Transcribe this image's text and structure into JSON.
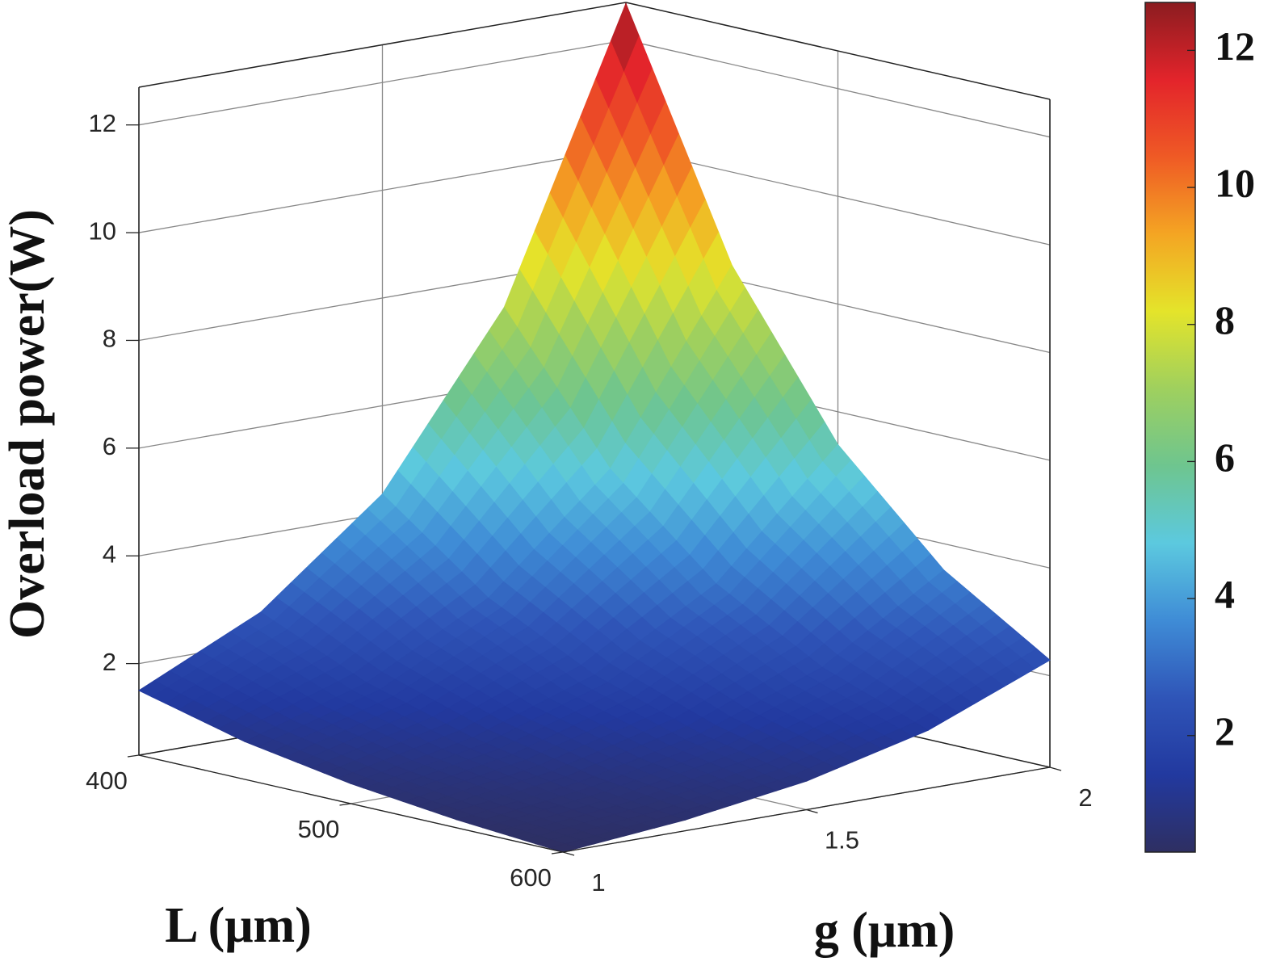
{
  "chart_data": {
    "type": "surface",
    "xlabel": "L (μm)",
    "ylabel": "g (μm)",
    "zlabel": "Overload power(W)",
    "x": [
      400,
      450,
      500,
      550,
      600
    ],
    "y": [
      1,
      1.25,
      1.5,
      1.75,
      2
    ],
    "z": [
      [
        1.5,
        2.56,
        4.36,
        7.43,
        12.68
      ],
      [
        1.0,
        1.7,
        2.88,
        4.88,
        8.27
      ],
      [
        0.67,
        1.13,
        1.9,
        3.2,
        5.39
      ],
      [
        0.45,
        0.75,
        1.26,
        2.1,
        3.51
      ],
      [
        0.3,
        0.5,
        0.83,
        1.38,
        2.29
      ]
    ],
    "xlim": [
      400,
      600
    ],
    "xticks": [
      400,
      500,
      600
    ],
    "ylim": [
      1,
      2
    ],
    "yticks": [
      1,
      1.5,
      2
    ],
    "zlim": [
      0.3,
      12.7
    ],
    "zticks": [
      2,
      4,
      6,
      8,
      10,
      12
    ],
    "clim": [
      0.3,
      12.7
    ],
    "cticks": [
      2,
      4,
      6,
      8,
      10,
      12
    ],
    "colormap": [
      "#2e2f62",
      "#22399f",
      "#2f55b8",
      "#3f8cd6",
      "#5cc9df",
      "#6ec58f",
      "#9fd05e",
      "#e4e42a",
      "#f4a523",
      "#ef5a25",
      "#e3242b",
      "#8b1c20"
    ],
    "grid": true,
    "colorbar": true
  }
}
